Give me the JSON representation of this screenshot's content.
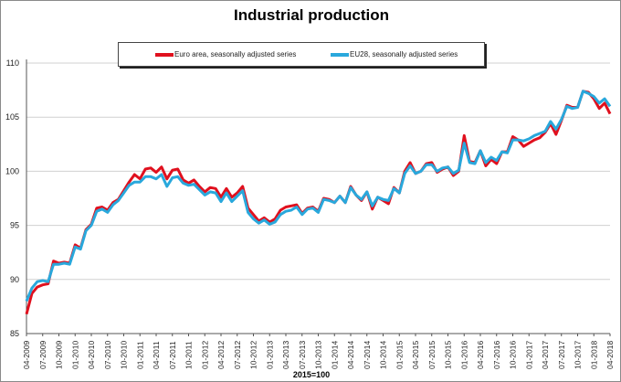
{
  "chart_data": {
    "type": "line",
    "title": "Industrial production",
    "xlabel": "2015=100",
    "ylim": [
      85,
      110
    ],
    "yticks": [
      85,
      90,
      95,
      100,
      105,
      110
    ],
    "grid": true,
    "legend_position": "top",
    "x_start": "04-2009",
    "x_end": "04-2018",
    "x_frequency": "monthly",
    "xtick_labels": [
      "04-2009",
      "07-2009",
      "10-2009",
      "01-2010",
      "04-2010",
      "07-2010",
      "10-2010",
      "01-2011",
      "04-2011",
      "07-2011",
      "10-2011",
      "01-2012",
      "04-2012",
      "07-2012",
      "10-2012",
      "01-2013",
      "04-2013",
      "07-2013",
      "10-2013",
      "01-2014",
      "04-2014",
      "07-2014",
      "10-2014",
      "01-2015",
      "04-2015",
      "07-2015",
      "10-2015",
      "01-2016",
      "04-2016",
      "07-2016",
      "10-2016",
      "01-2017",
      "04-2017",
      "07-2017",
      "10-2017",
      "01-2018",
      "04-2018"
    ],
    "series": [
      {
        "name": "Euro area, seasonally adjusted series",
        "color": "#e0101e",
        "values": [
          86.8,
          88.7,
          89.3,
          89.5,
          89.6,
          91.7,
          91.5,
          91.6,
          91.5,
          93.2,
          92.9,
          94.6,
          95.1,
          96.6,
          96.7,
          96.4,
          97.1,
          97.4,
          98.2,
          99.0,
          99.7,
          99.3,
          100.2,
          100.3,
          99.9,
          100.4,
          99.3,
          100.1,
          100.2,
          99.2,
          98.9,
          99.2,
          98.6,
          98.1,
          98.5,
          98.4,
          97.6,
          98.4,
          97.6,
          98.0,
          98.6,
          96.6,
          96.0,
          95.4,
          95.7,
          95.3,
          95.6,
          96.4,
          96.7,
          96.8,
          96.9,
          96.1,
          96.6,
          96.7,
          96.3,
          97.5,
          97.4,
          97.1,
          97.7,
          97.1,
          98.6,
          97.8,
          97.3,
          98.1,
          96.5,
          97.6,
          97.3,
          97.0,
          98.5,
          98.0,
          100.0,
          100.8,
          99.8,
          100.0,
          100.7,
          100.8,
          99.9,
          100.2,
          100.4,
          99.6,
          100.0,
          103.3,
          100.9,
          100.8,
          101.9,
          100.5,
          101.1,
          100.7,
          101.8,
          101.8,
          103.2,
          102.9,
          102.3,
          102.6,
          102.9,
          103.1,
          103.6,
          104.4,
          103.4,
          104.7,
          106.1,
          105.9,
          105.9,
          107.4,
          107.3,
          106.7,
          105.8,
          106.3,
          105.3
        ]
      },
      {
        "name": "EU28, seasonally adjusted series",
        "color": "#29a8dc",
        "values": [
          88.0,
          89.2,
          89.8,
          89.9,
          89.8,
          91.4,
          91.4,
          91.5,
          91.4,
          93.0,
          92.8,
          94.5,
          95.0,
          96.3,
          96.5,
          96.2,
          96.9,
          97.3,
          98.0,
          98.7,
          99.0,
          99.0,
          99.5,
          99.5,
          99.3,
          99.7,
          98.6,
          99.4,
          99.5,
          98.9,
          98.7,
          98.8,
          98.3,
          97.8,
          98.1,
          98.0,
          97.2,
          98.0,
          97.2,
          97.7,
          98.2,
          96.2,
          95.6,
          95.2,
          95.5,
          95.1,
          95.3,
          96.0,
          96.3,
          96.4,
          96.7,
          96.0,
          96.5,
          96.6,
          96.2,
          97.4,
          97.3,
          97.1,
          97.7,
          97.1,
          98.5,
          97.8,
          97.4,
          98.1,
          96.8,
          97.6,
          97.4,
          97.3,
          98.4,
          98.0,
          99.8,
          100.5,
          99.8,
          100.0,
          100.6,
          100.6,
          100.0,
          100.3,
          100.4,
          99.8,
          100.1,
          102.6,
          100.8,
          100.7,
          101.9,
          100.8,
          101.3,
          101.0,
          101.8,
          101.7,
          102.9,
          102.9,
          102.8,
          103.0,
          103.3,
          103.5,
          103.7,
          104.6,
          103.9,
          104.8,
          106.0,
          105.8,
          105.9,
          107.4,
          107.2,
          106.9,
          106.3,
          106.7,
          106.0
        ]
      }
    ]
  }
}
